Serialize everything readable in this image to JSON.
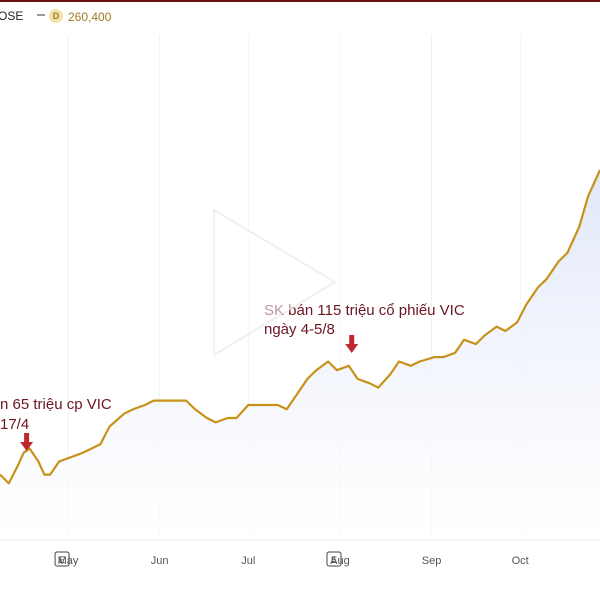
{
  "header": {
    "ticker": "OSE",
    "interval_badge": "D",
    "last_price": "260,400"
  },
  "annotations": [
    {
      "line1": "n 65 triệu cp VIC",
      "line2": "17/4"
    },
    {
      "line1": "SK bán 115 triệu cổ phiếu VIC",
      "line2": "ngày 4-5/8"
    }
  ],
  "earnings_markers": [
    "E",
    "E"
  ],
  "chart_data": {
    "type": "line",
    "x_tick_labels": [
      "May",
      "Jun",
      "Jul",
      "Aug",
      "Sep",
      "Oct"
    ],
    "series_points": [
      [
        "Apr 8",
        64
      ],
      [
        "Apr 11",
        62
      ],
      [
        "Apr 14",
        66
      ],
      [
        "Apr 16",
        69
      ],
      [
        "Apr 18",
        70
      ],
      [
        "Apr 21",
        67
      ],
      [
        "Apr 23",
        64
      ],
      [
        "Apr 25",
        64
      ],
      [
        "Apr 28",
        67
      ],
      [
        "May 2",
        68
      ],
      [
        "May 6",
        69
      ],
      [
        "May 9",
        70
      ],
      [
        "May 12",
        71
      ],
      [
        "May 15",
        75
      ],
      [
        "May 20",
        78
      ],
      [
        "May 23",
        79
      ],
      [
        "May 27",
        80
      ],
      [
        "May 30",
        81
      ],
      [
        "Jun 3",
        81
      ],
      [
        "Jun 6",
        81
      ],
      [
        "Jun 10",
        81
      ],
      [
        "Jun 13",
        79
      ],
      [
        "Jun 17",
        77
      ],
      [
        "Jun 20",
        76
      ],
      [
        "Jun 24",
        77
      ],
      [
        "Jun 27",
        77
      ],
      [
        "Jul 1",
        80
      ],
      [
        "Jul 4",
        80
      ],
      [
        "Jul 8",
        80
      ],
      [
        "Jul 11",
        80
      ],
      [
        "Jul 14",
        79
      ],
      [
        "Jul 17",
        82
      ],
      [
        "Jul 21",
        86
      ],
      [
        "Jul 24",
        88
      ],
      [
        "Jul 28",
        90
      ],
      [
        "Jul 31",
        88
      ],
      [
        "Aug 4",
        89
      ],
      [
        "Aug 7",
        86
      ],
      [
        "Aug 11",
        85
      ],
      [
        "Aug 14",
        84
      ],
      [
        "Aug 18",
        87
      ],
      [
        "Aug 21",
        90
      ],
      [
        "Aug 25",
        89
      ],
      [
        "Aug 28",
        90
      ],
      [
        "Sep 2",
        91
      ],
      [
        "Sep 5",
        91
      ],
      [
        "Sep 9",
        92
      ],
      [
        "Sep 12",
        95
      ],
      [
        "Sep 16",
        94
      ],
      [
        "Sep 19",
        96
      ],
      [
        "Sep 23",
        98
      ],
      [
        "Sep 26",
        97
      ],
      [
        "Sep 30",
        99
      ],
      [
        "Oct 3",
        103
      ],
      [
        "Oct 7",
        107
      ],
      [
        "Oct 10",
        109
      ],
      [
        "Oct 14",
        113
      ],
      [
        "Oct 17",
        115
      ],
      [
        "Oct 21",
        121
      ],
      [
        "Oct 24",
        128
      ],
      [
        "Oct 28",
        134
      ]
    ],
    "annotation_dates": [
      "Apr 17",
      "Aug 5"
    ],
    "earnings_dates": [
      "Apr 29",
      "Jul 30"
    ],
    "line_color": "#c8921a",
    "fill_color": "#e4ebf9",
    "annotation_color": "#6b1522",
    "arrow_color": "#c0282d",
    "grid": true
  }
}
